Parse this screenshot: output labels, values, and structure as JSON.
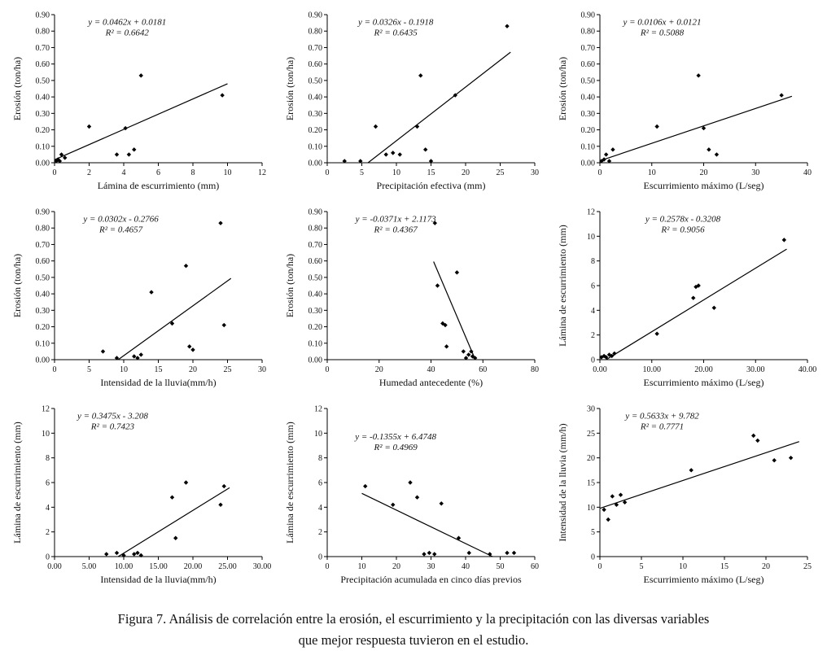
{
  "figure": {
    "caption_line1": "Figura 7. Análisis de correlación entre la erosión, el escurrimiento y la precipitación con las diversas variables",
    "caption_line2": "que mejor respuesta tuvieron en el estudio."
  },
  "chart_data": [
    {
      "name": "erosion-vs-lamina-escurrimiento",
      "type": "scatter",
      "equation": "y = 0.0462x + 0.0181",
      "r2": "R² = 0.6642",
      "xlabel": "Lámina de escurrimiento (mm)",
      "ylabel": "Erosión (ton/ha)",
      "xlim": [
        0,
        12
      ],
      "ylim": [
        0,
        0.9
      ],
      "xticks": [
        "0",
        "2",
        "4",
        "6",
        "8",
        "10",
        "12"
      ],
      "yticks": [
        "0.00",
        "0.10",
        "0.20",
        "0.30",
        "0.40",
        "0.50",
        "0.60",
        "0.70",
        "0.80",
        "0.90"
      ],
      "points": [
        [
          0.1,
          0.01
        ],
        [
          0.2,
          0.02
        ],
        [
          0.3,
          0.01
        ],
        [
          0.4,
          0.05
        ],
        [
          0.6,
          0.03
        ],
        [
          2,
          0.22
        ],
        [
          3.6,
          0.05
        ],
        [
          4.1,
          0.21
        ],
        [
          4.3,
          0.05
        ],
        [
          4.6,
          0.08
        ],
        [
          5,
          0.53
        ],
        [
          9.7,
          0.41
        ]
      ],
      "trend": [
        0,
        0.018,
        10,
        0.48
      ],
      "eq_pos": [
        0.35,
        0.02
      ]
    },
    {
      "name": "erosion-vs-precipitacion-efectiva",
      "type": "scatter",
      "equation": "y = 0.0326x - 0.1918",
      "r2": "R² = 0.6435",
      "xlabel": "Precipitación efectiva (mm)",
      "ylabel": "Erosión (ton/ha)",
      "xlim": [
        0,
        30
      ],
      "ylim": [
        0,
        0.9
      ],
      "xticks": [
        "0",
        "5",
        "10",
        "15",
        "20",
        "25",
        "30"
      ],
      "yticks": [
        "0.00",
        "0.10",
        "0.20",
        "0.30",
        "0.40",
        "0.50",
        "0.60",
        "0.70",
        "0.80",
        "0.90"
      ],
      "points": [
        [
          2.5,
          0.01
        ],
        [
          4.8,
          0.01
        ],
        [
          7,
          0.22
        ],
        [
          8.5,
          0.05
        ],
        [
          9.5,
          0.06
        ],
        [
          10.5,
          0.05
        ],
        [
          13,
          0.22
        ],
        [
          13.5,
          0.53
        ],
        [
          14.2,
          0.08
        ],
        [
          15,
          0.01
        ],
        [
          18.5,
          0.41
        ],
        [
          26,
          0.83
        ]
      ],
      "trend": [
        5.9,
        0,
        26.5,
        0.672
      ],
      "eq_pos": [
        0.33,
        0.02
      ]
    },
    {
      "name": "erosion-vs-escurrimiento-maximo",
      "type": "scatter",
      "equation": "y = 0.0106x + 0.0121",
      "r2": "R² = 0.5088",
      "xlabel": "Escurrimiento máximo (L/seg)",
      "ylabel": "Erosión (ton/ha)",
      "xlim": [
        0,
        40
      ],
      "ylim": [
        0,
        0.9
      ],
      "xticks": [
        "0",
        "10",
        "20",
        "30",
        "40"
      ],
      "yticks": [
        "0.00",
        "0.10",
        "0.20",
        "0.30",
        "0.40",
        "0.50",
        "0.60",
        "0.70",
        "0.80",
        "0.90"
      ],
      "points": [
        [
          0.3,
          0.01
        ],
        [
          0.8,
          0.02
        ],
        [
          1.2,
          0.05
        ],
        [
          1.8,
          0.01
        ],
        [
          2.5,
          0.08
        ],
        [
          11,
          0.22
        ],
        [
          19,
          0.53
        ],
        [
          20,
          0.21
        ],
        [
          21,
          0.08
        ],
        [
          22.5,
          0.05
        ],
        [
          35,
          0.41
        ]
      ],
      "trend": [
        0,
        0.012,
        37,
        0.404
      ],
      "eq_pos": [
        0.3,
        0.02
      ]
    },
    {
      "name": "erosion-vs-intensidad-lluvia",
      "type": "scatter",
      "equation": "y = 0.0302x - 0.2766",
      "r2": "R² = 0.4657",
      "xlabel": "Intensidad de la lluvia(mm/h)",
      "ylabel": "Erosión (ton/ha)",
      "xlim": [
        0,
        30
      ],
      "ylim": [
        0,
        0.9
      ],
      "xticks": [
        "0",
        "5",
        "10",
        "15",
        "20",
        "25",
        "30"
      ],
      "yticks": [
        "0.00",
        "0.10",
        "0.20",
        "0.30",
        "0.40",
        "0.50",
        "0.60",
        "0.70",
        "0.80",
        "0.90"
      ],
      "points": [
        [
          7,
          0.05
        ],
        [
          9,
          0.01
        ],
        [
          11.5,
          0.02
        ],
        [
          12,
          0.01
        ],
        [
          12.5,
          0.03
        ],
        [
          14,
          0.41
        ],
        [
          17,
          0.22
        ],
        [
          19,
          0.57
        ],
        [
          19.5,
          0.08
        ],
        [
          20,
          0.06
        ],
        [
          24,
          0.83
        ],
        [
          24.5,
          0.21
        ]
      ],
      "trend": [
        9.2,
        0,
        25.5,
        0.494
      ],
      "eq_pos": [
        0.32,
        0.02
      ]
    },
    {
      "name": "erosion-vs-humedad-antecedente",
      "type": "scatter",
      "equation": "y = -0.0371x + 2.1173",
      "r2": "R² = 0.4367",
      "xlabel": "Humedad antecedente (%)",
      "ylabel": "Erosión (ton/ha)",
      "xlim": [
        0,
        80
      ],
      "ylim": [
        0,
        0.9
      ],
      "xticks": [
        "0",
        "20",
        "40",
        "60",
        "80"
      ],
      "yticks": [
        "0.00",
        "0.10",
        "0.20",
        "0.30",
        "0.40",
        "0.50",
        "0.60",
        "0.70",
        "0.80",
        "0.90"
      ],
      "points": [
        [
          41.5,
          0.83
        ],
        [
          42.5,
          0.45
        ],
        [
          44.5,
          0.22
        ],
        [
          45.5,
          0.21
        ],
        [
          46,
          0.08
        ],
        [
          50,
          0.53
        ],
        [
          52.5,
          0.05
        ],
        [
          53.5,
          0.01
        ],
        [
          54.5,
          0.03
        ],
        [
          55.5,
          0.05
        ],
        [
          56,
          0.02
        ],
        [
          57,
          0.01
        ]
      ],
      "trend": [
        41,
        0.596,
        57,
        0.003
      ],
      "eq_pos": [
        0.33,
        0.02
      ]
    },
    {
      "name": "lamina-vs-escurrimiento-maximo",
      "type": "scatter",
      "equation": "y = 0.2578x - 0.3208",
      "r2": "R² = 0.9056",
      "xlabel": "Escurrimiento máximo (L/seg)",
      "ylabel": "Lámina de escurrimiento (mm)",
      "xlim": [
        0,
        40
      ],
      "ylim": [
        0,
        12
      ],
      "xticks": [
        "0.00",
        "10.00",
        "20.00",
        "30.00",
        "40.00"
      ],
      "yticks": [
        "0",
        "2",
        "4",
        "6",
        "8",
        "10",
        "12"
      ],
      "points": [
        [
          0.3,
          0.2
        ],
        [
          0.8,
          0.3
        ],
        [
          1.2,
          0.2
        ],
        [
          1.8,
          0.4
        ],
        [
          2.3,
          0.3
        ],
        [
          2.8,
          0.5
        ],
        [
          11,
          2.1
        ],
        [
          18,
          5
        ],
        [
          18.5,
          5.9
        ],
        [
          19,
          6
        ],
        [
          22,
          4.2
        ],
        [
          35.5,
          9.7
        ]
      ],
      "trend": [
        1.2,
        0,
        36,
        8.96
      ],
      "eq_pos": [
        0.4,
        0.02
      ]
    },
    {
      "name": "lamina-vs-intensidad-lluvia",
      "type": "scatter",
      "equation": "y = 0.3475x - 3.208",
      "r2": "R² = 0.7423",
      "xlabel": "Intensidad de la lluvia(mm/h)",
      "ylabel": "Lámina de escurrimiento (mm)",
      "xlim": [
        0,
        30
      ],
      "ylim": [
        0,
        12
      ],
      "xticks": [
        "0.00",
        "5.00",
        "10.00",
        "15.00",
        "20.00",
        "25.00",
        "30.00"
      ],
      "yticks": [
        "0",
        "2",
        "4",
        "6",
        "8",
        "10",
        "12"
      ],
      "points": [
        [
          7.5,
          0.2
        ],
        [
          9,
          0.3
        ],
        [
          10,
          0.1
        ],
        [
          11.5,
          0.2
        ],
        [
          12,
          0.3
        ],
        [
          12.5,
          0.1
        ],
        [
          17,
          4.8
        ],
        [
          17.5,
          1.5
        ],
        [
          19,
          6
        ],
        [
          24,
          4.2
        ],
        [
          24.5,
          5.7
        ]
      ],
      "trend": [
        9.2,
        0,
        25.3,
        5.58
      ],
      "eq_pos": [
        0.28,
        0.02
      ]
    },
    {
      "name": "lamina-vs-precipitacion-acumulada",
      "type": "scatter",
      "equation": "y = -0.1355x + 6.4748",
      "r2": "R² = 0.4969",
      "xlabel": "Precipitación acumulada en cinco días previos",
      "ylabel": "Lámina de escurrimiento (mm)",
      "xlim": [
        0,
        60
      ],
      "ylim": [
        0,
        12
      ],
      "xticks": [
        "0",
        "10",
        "20",
        "30",
        "40",
        "50",
        "60"
      ],
      "yticks": [
        "0",
        "2",
        "4",
        "6",
        "8",
        "10",
        "12"
      ],
      "points": [
        [
          11,
          5.7
        ],
        [
          19,
          4.2
        ],
        [
          24,
          6
        ],
        [
          26,
          4.8
        ],
        [
          28,
          0.2
        ],
        [
          29.5,
          0.3
        ],
        [
          31,
          0.2
        ],
        [
          33,
          4.3
        ],
        [
          38,
          1.5
        ],
        [
          41,
          0.3
        ],
        [
          47,
          0.2
        ],
        [
          52,
          0.3
        ],
        [
          54,
          0.3
        ]
      ],
      "trend": [
        10,
        5.12,
        47.8,
        0
      ],
      "eq_pos": [
        0.33,
        0.16
      ]
    },
    {
      "name": "intensidad-vs-escurrimiento-maximo",
      "type": "scatter",
      "equation": "y = 0.5633x + 9.782",
      "r2": "R² = 0.7771",
      "xlabel": "Escurrimiento máximo (L/seg)",
      "ylabel": "Intensidad de la lluvia (mm/h)",
      "xlim": [
        0,
        25
      ],
      "ylim": [
        0,
        30
      ],
      "xticks": [
        "0",
        "5",
        "10",
        "15",
        "20",
        "25"
      ],
      "yticks": [
        "0",
        "5",
        "10",
        "15",
        "20",
        "25",
        "30"
      ],
      "points": [
        [
          0.5,
          9.5
        ],
        [
          1,
          7.5
        ],
        [
          1.5,
          12.2
        ],
        [
          2,
          10.5
        ],
        [
          2.5,
          12.5
        ],
        [
          3,
          11
        ],
        [
          11,
          17.5
        ],
        [
          18.5,
          24.5
        ],
        [
          19,
          23.5
        ],
        [
          21,
          19.5
        ],
        [
          23,
          20
        ]
      ],
      "trend": [
        0,
        9.78,
        24,
        23.3
      ],
      "eq_pos": [
        0.3,
        0.02
      ]
    }
  ]
}
